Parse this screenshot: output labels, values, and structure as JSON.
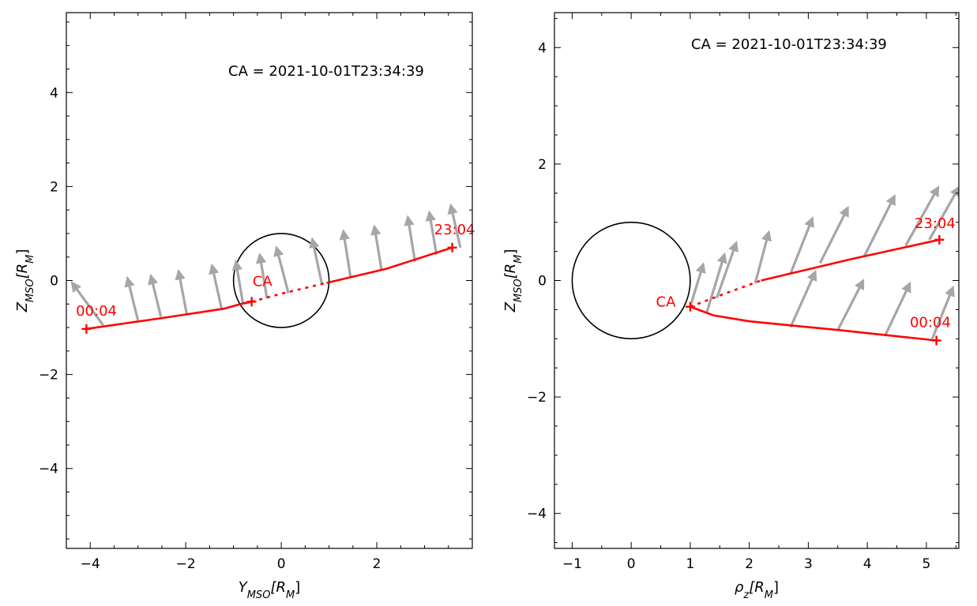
{
  "colors": {
    "trajectory": "#ff0000",
    "arrow": "#a6a6a6",
    "planet": "#000000",
    "axes": "#000000"
  },
  "chart_data": [
    {
      "type": "line",
      "annotation": "CA = 2021-10-01T23:34:39",
      "xlabel_main": "Y",
      "xlabel_sub": "MSO",
      "xlabel_unit": "[R",
      "xlabel_unit_sub": "M",
      "xlabel_close": "]",
      "ylabel_main": "Z",
      "ylabel_sub": "MSO",
      "ylabel_unit": "[R",
      "ylabel_unit_sub": "M",
      "ylabel_close": "]",
      "xlim": [
        -4.5,
        4.0
      ],
      "ylim": [
        -5.7,
        5.7
      ],
      "x_ticks": [
        -4,
        -2,
        0,
        2
      ],
      "x_tick_labels": [
        "−4",
        "−2",
        "0",
        "2"
      ],
      "y_ticks": [
        -4,
        -2,
        0,
        2,
        4
      ],
      "y_tick_labels": [
        "−4",
        "−2",
        "0",
        "2",
        "4"
      ],
      "planet": {
        "cx": 0,
        "cy": 0,
        "r": 1
      },
      "trajectory": [
        {
          "style": "solid",
          "points": [
            [
              -4.08,
              -1.03
            ],
            [
              -2.5,
              -0.8
            ],
            [
              -1.2,
              -0.6
            ],
            [
              -0.85,
              -0.5
            ],
            [
              -0.62,
              -0.45
            ]
          ]
        },
        {
          "style": "dotted",
          "points": [
            [
              -0.62,
              -0.45
            ],
            [
              0,
              -0.28
            ],
            [
              0.95,
              -0.05
            ]
          ]
        },
        {
          "style": "solid",
          "points": [
            [
              0.95,
              -0.05
            ],
            [
              2.2,
              0.25
            ],
            [
              3.58,
              0.7
            ]
          ]
        }
      ],
      "markers": [
        {
          "label": "00:04",
          "x": -4.08,
          "y": -1.03,
          "label_x": -4.3,
          "label_y": -0.75
        },
        {
          "label": "CA",
          "x": -0.62,
          "y": -0.45,
          "label_x": -0.6,
          "label_y": -0.12
        },
        {
          "label": "23:04",
          "x": 3.58,
          "y": 0.7,
          "label_x": 3.2,
          "label_y": 0.98
        }
      ],
      "arrows": [
        {
          "x0": -3.73,
          "y0": -0.95,
          "x1": -4.38,
          "y1": -0.05
        },
        {
          "x0": -3.0,
          "y0": -0.85,
          "x1": -3.22,
          "y1": 0.05
        },
        {
          "x0": -2.52,
          "y0": -0.77,
          "x1": -2.73,
          "y1": 0.1
        },
        {
          "x0": -1.98,
          "y0": -0.71,
          "x1": -2.15,
          "y1": 0.2
        },
        {
          "x0": -1.25,
          "y0": -0.6,
          "x1": -1.45,
          "y1": 0.32
        },
        {
          "x0": -0.8,
          "y0": -0.5,
          "x1": -0.95,
          "y1": 0.4
        },
        {
          "x0": -0.3,
          "y0": -0.38,
          "x1": -0.45,
          "y1": 0.55
        },
        {
          "x0": 0.15,
          "y0": -0.27,
          "x1": -0.1,
          "y1": 0.7
        },
        {
          "x0": 0.85,
          "y0": -0.07,
          "x1": 0.65,
          "y1": 0.88
        },
        {
          "x0": 1.45,
          "y0": 0.07,
          "x1": 1.3,
          "y1": 1.05
        },
        {
          "x0": 2.1,
          "y0": 0.22,
          "x1": 1.95,
          "y1": 1.15
        },
        {
          "x0": 2.8,
          "y0": 0.4,
          "x1": 2.65,
          "y1": 1.35
        },
        {
          "x0": 3.25,
          "y0": 0.55,
          "x1": 3.1,
          "y1": 1.45
        },
        {
          "x0": 3.75,
          "y0": 0.7,
          "x1": 3.55,
          "y1": 1.6
        }
      ]
    },
    {
      "type": "line",
      "annotation": "CA = 2021-10-01T23:34:39",
      "xlabel_main": "ρ",
      "xlabel_sub": "z",
      "xlabel_unit": "[R",
      "xlabel_unit_sub": "M",
      "xlabel_close": "]",
      "ylabel_main": "Z",
      "ylabel_sub": "MSO",
      "ylabel_unit": "[R",
      "ylabel_unit_sub": "M",
      "ylabel_close": "]",
      "xlim": [
        -1.3,
        5.55
      ],
      "ylim": [
        -4.6,
        4.6
      ],
      "x_ticks": [
        -1,
        0,
        1,
        2,
        3,
        4,
        5
      ],
      "x_tick_labels": [
        "−1",
        "0",
        "1",
        "2",
        "3",
        "4",
        "5"
      ],
      "y_ticks": [
        -4,
        -2,
        0,
        2,
        4
      ],
      "y_tick_labels": [
        "−4",
        "−2",
        "0",
        "2",
        "4"
      ],
      "planet": {
        "cx": 0,
        "cy": 0,
        "r": 1
      },
      "trajectory": [
        {
          "style": "dotted",
          "points": [
            [
              1.0,
              -0.45
            ],
            [
              1.6,
              -0.22
            ],
            [
              2.2,
              0.0
            ]
          ]
        },
        {
          "style": "solid",
          "points": [
            [
              2.2,
              0.0
            ],
            [
              3.7,
              0.36
            ],
            [
              5.22,
              0.7
            ]
          ]
        },
        {
          "style": "solid",
          "points": [
            [
              1.0,
              -0.45
            ],
            [
              1.4,
              -0.6
            ],
            [
              2.0,
              -0.7
            ],
            [
              3.5,
              -0.85
            ],
            [
              5.17,
              -1.03
            ]
          ]
        }
      ],
      "markers": [
        {
          "label": "CA",
          "x": 1.0,
          "y": -0.45,
          "label_x": 0.42,
          "label_y": -0.45
        },
        {
          "label": "23:04",
          "x": 5.22,
          "y": 0.7,
          "label_x": 4.8,
          "label_y": 0.9
        },
        {
          "label": "00:04",
          "x": 5.17,
          "y": -1.03,
          "label_x": 4.72,
          "label_y": -0.8
        }
      ],
      "arrows": [
        {
          "x0": 1.0,
          "y0": -0.45,
          "x1": 1.22,
          "y1": 0.28
        },
        {
          "x0": 1.28,
          "y0": -0.55,
          "x1": 1.58,
          "y1": 0.45
        },
        {
          "x0": 1.45,
          "y0": -0.3,
          "x1": 1.78,
          "y1": 0.65
        },
        {
          "x0": 2.1,
          "y0": -0.05,
          "x1": 2.33,
          "y1": 0.83
        },
        {
          "x0": 2.7,
          "y0": 0.12,
          "x1": 3.07,
          "y1": 1.07
        },
        {
          "x0": 3.2,
          "y0": 0.3,
          "x1": 3.67,
          "y1": 1.25
        },
        {
          "x0": 3.95,
          "y0": 0.42,
          "x1": 4.46,
          "y1": 1.45
        },
        {
          "x0": 4.65,
          "y0": 0.6,
          "x1": 5.2,
          "y1": 1.6
        },
        {
          "x0": 5.05,
          "y0": 0.7,
          "x1": 5.55,
          "y1": 1.6
        },
        {
          "x0": 2.7,
          "y0": -0.8,
          "x1": 3.12,
          "y1": 0.15
        },
        {
          "x0": 3.5,
          "y0": -0.85,
          "x1": 3.93,
          "y1": 0.0
        },
        {
          "x0": 4.3,
          "y0": -0.95,
          "x1": 4.72,
          "y1": -0.05
        },
        {
          "x0": 5.1,
          "y0": -1.0,
          "x1": 5.45,
          "y1": -0.12
        }
      ]
    }
  ]
}
